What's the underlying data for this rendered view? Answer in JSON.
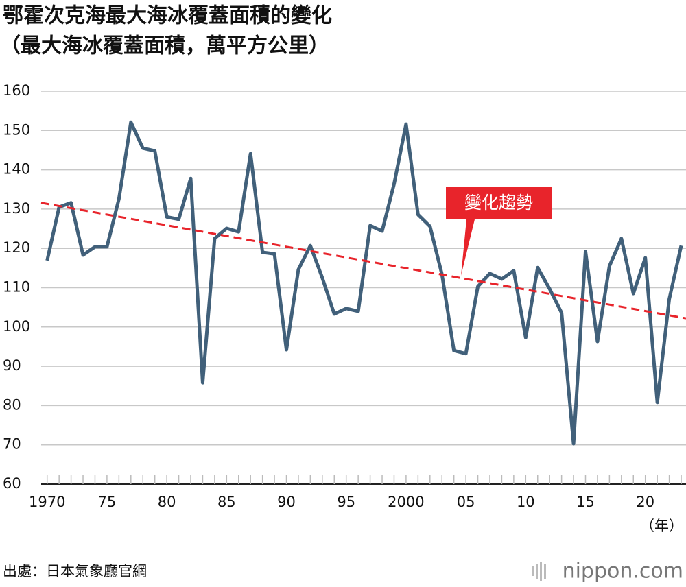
{
  "chart_data": {
    "type": "line",
    "title": "鄂霍次克海最大海冰覆蓋面積的變化",
    "subtitle": "（最大海冰覆蓋面積，萬平方公里）",
    "x_unit": "（年）",
    "source": "出處：日本氣象廳官網",
    "logo": "nippon.com",
    "x": [
      1970,
      1971,
      1972,
      1973,
      1974,
      1975,
      1976,
      1977,
      1978,
      1979,
      1980,
      1981,
      1982,
      1983,
      1984,
      1985,
      1986,
      1987,
      1988,
      1989,
      1990,
      1991,
      1992,
      1993,
      1994,
      1995,
      1996,
      1997,
      1998,
      1999,
      2000,
      2001,
      2002,
      2003,
      2004,
      2005,
      2006,
      2007,
      2008,
      2009,
      2010,
      2011,
      2012,
      2013,
      2014,
      2015,
      2016,
      2017,
      2018,
      2019,
      2020,
      2021,
      2022,
      2023
    ],
    "series": [
      {
        "color": "#41607a",
        "values": [
          116.9,
          130.5,
          131.6,
          118.3,
          120.4,
          120.4,
          132.6,
          152.1,
          145.5,
          144.8,
          128.0,
          127.4,
          137.8,
          85.8,
          122.5,
          125.1,
          124.2,
          144.1,
          119.0,
          118.6,
          94.2,
          114.6,
          120.7,
          112.5,
          103.3,
          104.7,
          104.0,
          125.8,
          124.4,
          136.4,
          151.6,
          128.6,
          125.6,
          113.4,
          94.0,
          93.2,
          110.3,
          113.6,
          112.2,
          114.3,
          97.3,
          115.1,
          109.7,
          103.6,
          70.3,
          119.2,
          96.3,
          115.5,
          122.5,
          108.5,
          117.6,
          80.8,
          107.1,
          120.7
        ]
      }
    ],
    "trend": {
      "name": "變化趨勢",
      "color": "#e8242b",
      "x": [
        1969.5,
        2023.4
      ],
      "values": [
        131.6,
        102.2
      ]
    },
    "xlim": [
      1969.5,
      2023.4
    ],
    "xticks": [
      {
        "value": 1970,
        "label": "1970"
      },
      {
        "value": 1975,
        "label": "75"
      },
      {
        "value": 1980,
        "label": "80"
      },
      {
        "value": 1985,
        "label": "85"
      },
      {
        "value": 1990,
        "label": "90"
      },
      {
        "value": 1995,
        "label": "95"
      },
      {
        "value": 2000,
        "label": "2000"
      },
      {
        "value": 2005,
        "label": "05"
      },
      {
        "value": 2010,
        "label": "10"
      },
      {
        "value": 2015,
        "label": "15"
      },
      {
        "value": 2020,
        "label": "20"
      }
    ],
    "ylim": [
      60,
      160
    ],
    "yticks": [
      60,
      70,
      80,
      90,
      100,
      110,
      120,
      130,
      140,
      150,
      160
    ],
    "grid": true
  }
}
